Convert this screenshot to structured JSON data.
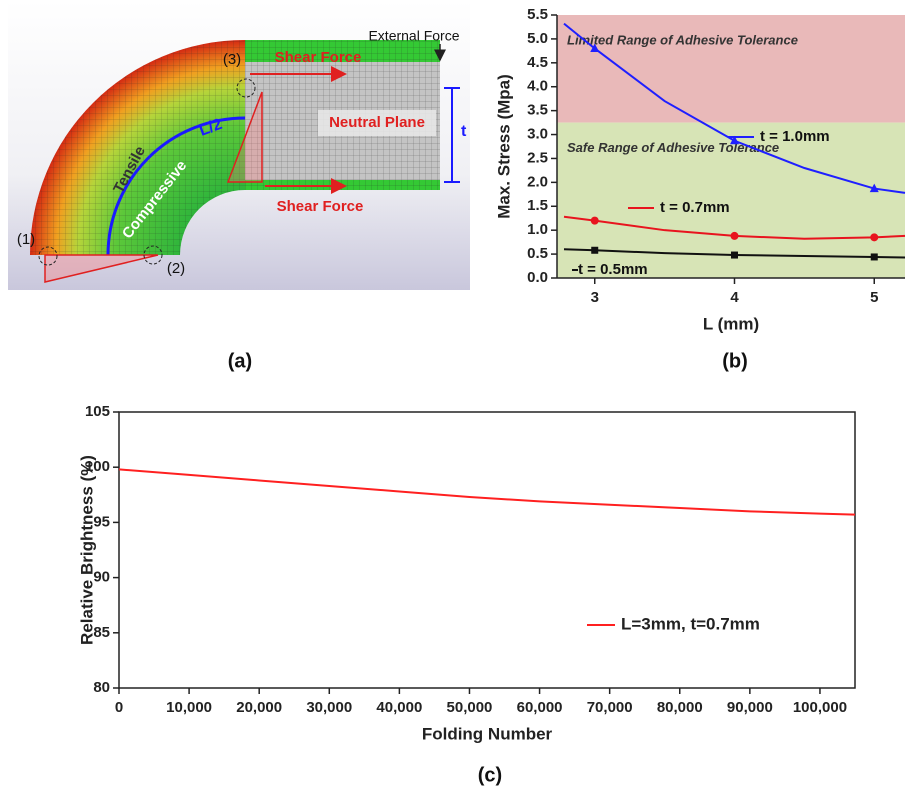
{
  "diagram": {
    "labels": {
      "external_force": "External Force",
      "shear_force_top": "Shear Force",
      "shear_force_bottom": "Shear Force",
      "neutral_plane": "Neutral Plane",
      "thickness": "t",
      "half_length": "L/2",
      "tensile": "Tensile",
      "compressive": "Compressive",
      "point_1": "(1)",
      "point_2": "(2)",
      "point_3": "(3)"
    }
  },
  "captions": [
    "(a)",
    "(b)",
    "(c)"
  ],
  "chart_data": [
    {
      "type": "line",
      "x_label": "L (mm)",
      "y_label": "Max. Stress (Mpa)",
      "xlim": [
        2.73,
        5.22
      ],
      "xticks": [
        3,
        4,
        5
      ],
      "ylim": [
        0,
        5.5
      ],
      "yticks": [
        {
          "value": 0,
          "label": "0.0"
        },
        0.5,
        {
          "value": 1,
          "label": "1.0"
        },
        1.5,
        {
          "value": 2,
          "label": "2.0"
        },
        2.5,
        {
          "value": 3,
          "label": "3.0"
        },
        3.5,
        {
          "value": 4,
          "label": "4.0"
        },
        4.5,
        {
          "value": 5,
          "label": "5.0"
        },
        5.5
      ],
      "bands": [
        {
          "from": 3.25,
          "to": 5.5,
          "color": "#e9b9b9",
          "label": "Limited Range of Adhesive Tolerance"
        },
        {
          "from": 0,
          "to": 3.25,
          "color": "#d7e4b6",
          "label": "Safe Range of Adhesive Tolerance"
        }
      ],
      "series": [
        {
          "name": "t = 1.0mm",
          "color": "#1f1fff",
          "marker": "triangle",
          "x": [
            2.78,
            3,
            3.5,
            4,
            4.5,
            5,
            5.22
          ],
          "values": [
            5.32,
            4.8,
            3.7,
            2.87,
            2.3,
            1.87,
            1.78
          ],
          "marker_x": [
            3,
            4,
            5
          ],
          "marker_values": [
            4.8,
            2.87,
            1.87
          ]
        },
        {
          "name": "t = 0.7mm",
          "color": "#e8141e",
          "marker": "circle",
          "x": [
            2.78,
            3,
            3.5,
            4,
            4.5,
            5,
            5.22
          ],
          "values": [
            1.28,
            1.2,
            1.0,
            0.88,
            0.82,
            0.85,
            0.88
          ],
          "marker_x": [
            3,
            4,
            5
          ],
          "marker_values": [
            1.2,
            0.88,
            0.85
          ]
        },
        {
          "name": "t = 0.5mm",
          "color": "#111111",
          "marker": "square",
          "x": [
            2.78,
            3,
            3.5,
            4,
            4.5,
            5,
            5.22
          ],
          "values": [
            0.6,
            0.58,
            0.52,
            0.48,
            0.46,
            0.44,
            0.43
          ],
          "marker_x": [
            3,
            4,
            5
          ],
          "marker_values": [
            0.58,
            0.48,
            0.44
          ]
        }
      ]
    },
    {
      "type": "line",
      "x_label": "Folding Number",
      "y_label": "Relative Brightness (%)",
      "xlim": [
        0,
        105000
      ],
      "xticks": [
        0,
        {
          "value": 10000,
          "label": "10,000"
        },
        {
          "value": 20000,
          "label": "20,000"
        },
        {
          "value": 30000,
          "label": "30,000"
        },
        {
          "value": 40000,
          "label": "40,000"
        },
        {
          "value": 50000,
          "label": "50,000"
        },
        {
          "value": 60000,
          "label": "60,000"
        },
        {
          "value": 70000,
          "label": "70,000"
        },
        {
          "value": 80000,
          "label": "80,000"
        },
        {
          "value": 90000,
          "label": "90,000"
        },
        {
          "value": 100000,
          "label": "100,000"
        }
      ],
      "ylim": [
        80,
        105
      ],
      "yticks": [
        80,
        85,
        90,
        95,
        100,
        105
      ],
      "legend": "lower right",
      "series": [
        {
          "name": "L=3mm, t=0.7mm",
          "color": "#ff2020",
          "x": [
            0,
            10000,
            20000,
            30000,
            40000,
            50000,
            60000,
            70000,
            80000,
            90000,
            100000,
            105000
          ],
          "values": [
            99.8,
            99.3,
            98.8,
            98.3,
            97.8,
            97.3,
            96.9,
            96.6,
            96.3,
            96.0,
            95.8,
            95.7
          ]
        }
      ]
    }
  ]
}
